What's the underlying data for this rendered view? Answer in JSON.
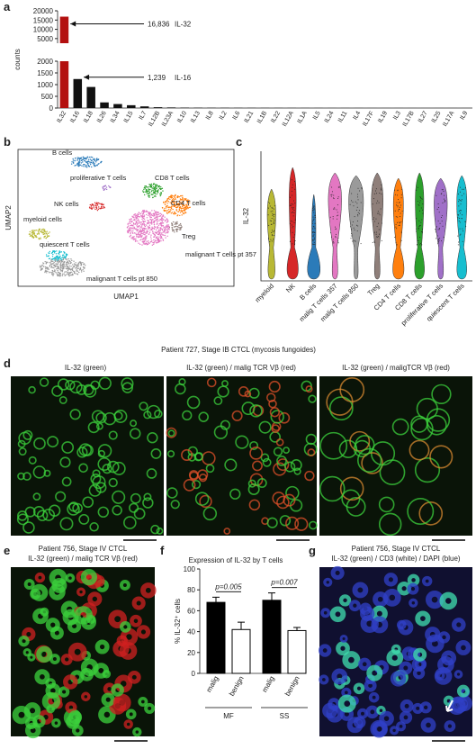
{
  "panel_labels": [
    "a",
    "b",
    "c",
    "d",
    "e",
    "f",
    "g"
  ],
  "chart_data": [
    {
      "type": "bar",
      "ylabel": "counts",
      "categories": [
        "IL32",
        "IL16",
        "IL18",
        "IL26",
        "IL34",
        "IL15",
        "IL7",
        "IL12B",
        "IL23A",
        "IL10",
        "IL13",
        "IL8",
        "IL2",
        "IL6",
        "IL21",
        "IL1B",
        "IL22",
        "IL12A",
        "IL1A",
        "IL5",
        "IL24",
        "IL11",
        "IL4",
        "IL17F",
        "IL19",
        "IL3",
        "IL17B",
        "IL27",
        "IL25",
        "IL17A",
        "IL9"
      ],
      "values": [
        16836,
        1239,
        900,
        240,
        170,
        120,
        70,
        35,
        25,
        18,
        14,
        11,
        9,
        8,
        7,
        6,
        5,
        5,
        4,
        4,
        3,
        3,
        3,
        2,
        2,
        2,
        1,
        1,
        1,
        1,
        1
      ],
      "value_labels": [
        "16,836",
        "1,239",
        null,
        null,
        null,
        null,
        null,
        null,
        null,
        null,
        null,
        null,
        null,
        null,
        null,
        null,
        null,
        null,
        null,
        null,
        null,
        null,
        null,
        null,
        null,
        null,
        null,
        null,
        null,
        null,
        null
      ],
      "annotations": [
        "IL-32",
        "IL-16"
      ],
      "colors": [
        "#b3100f",
        "#111111",
        "#111111",
        "#111111",
        "#111111",
        "#111111",
        "#111111",
        "#111111",
        "#111111",
        "#111111",
        "#111111",
        "#111111",
        "#111111",
        "#111111",
        "#111111",
        "#111111",
        "#111111",
        "#111111",
        "#111111",
        "#111111",
        "#111111",
        "#111111",
        "#111111",
        "#111111",
        "#111111",
        "#111111",
        "#111111",
        "#111111",
        "#111111",
        "#111111",
        "#111111"
      ],
      "ylim": [
        0,
        2000
      ],
      "yticks": [
        0,
        500,
        1000,
        1500,
        2000
      ],
      "ylim_upper": [
        2500,
        20000
      ],
      "yticks_upper": [
        5000,
        10000,
        15000,
        20000
      ]
    },
    {
      "type": "violin",
      "ylabel": "IL-32",
      "categories": [
        "myeloid",
        "NK",
        "B cells",
        "malig T cells 357",
        "malig T cells 850",
        "Treg",
        "CD4 T cells",
        "CD8 T cells",
        "proliferative T cells",
        "quiescent T cells"
      ],
      "colors": [
        "#b8b834",
        "#d62728",
        "#2b7bb9",
        "#e377c2",
        "#9a9a9a",
        "#8f7f7a",
        "#ff7f0e",
        "#2ca02c",
        "#a070c8",
        "#17becf"
      ]
    },
    {
      "type": "bar",
      "title": "Expression of IL-32 by T cells",
      "ylabel": "% IL-32⁺ cells",
      "categories": [
        "malig",
        "benign",
        "malig",
        "benign"
      ],
      "groups": [
        "MF",
        "SS"
      ],
      "values": [
        68,
        42,
        70,
        41
      ],
      "errors": [
        5,
        7,
        7,
        3
      ],
      "colors": [
        "#000000",
        "#ffffff",
        "#000000",
        "#ffffff"
      ],
      "annotations": [
        "p=0.005",
        "p=0.007"
      ],
      "ylim": [
        0,
        100
      ],
      "yticks": [
        0,
        20,
        40,
        60,
        80,
        100
      ]
    }
  ],
  "umap": {
    "xlabel": "UMAP1",
    "ylabel": "UMAP2",
    "clusters": [
      {
        "label": "B cells",
        "color": "#2b7bb9"
      },
      {
        "label": "proliferative T cells",
        "color": "#a070c8"
      },
      {
        "label": "CD8 T cells",
        "color": "#2ca02c"
      },
      {
        "label": "NK cells",
        "color": "#d62728"
      },
      {
        "label": "CD4 T cells",
        "color": "#ff7f0e"
      },
      {
        "label": "myeloid cells",
        "color": "#b8b834"
      },
      {
        "label": "Treg",
        "color": "#8f7f7a"
      },
      {
        "label": "quiescent T cells",
        "color": "#17becf"
      },
      {
        "label": "malignant T cells pt 357",
        "color": "#e377c2"
      },
      {
        "label": "malignant T cells pt 850",
        "color": "#9a9a9a"
      }
    ]
  },
  "figure_title": "Patient 727, Stage IB CTCL (mycosis fungoides)",
  "d_titles": [
    "IL-32 (green)",
    "IL-32 (green) / malig TCR Vβ (red)",
    "IL-32 (green) / maligTCR Vβ (red)"
  ],
  "e": {
    "title": "Patient 756, Stage IV CTCL",
    "subtitle": "IL-32 (green) / malig TCR Vβ (red)"
  },
  "g": {
    "title": "Patient 756, Stage IV CTCL",
    "subtitle": "IL-32 (green) / CD3 (white) / DAPI (blue)"
  }
}
